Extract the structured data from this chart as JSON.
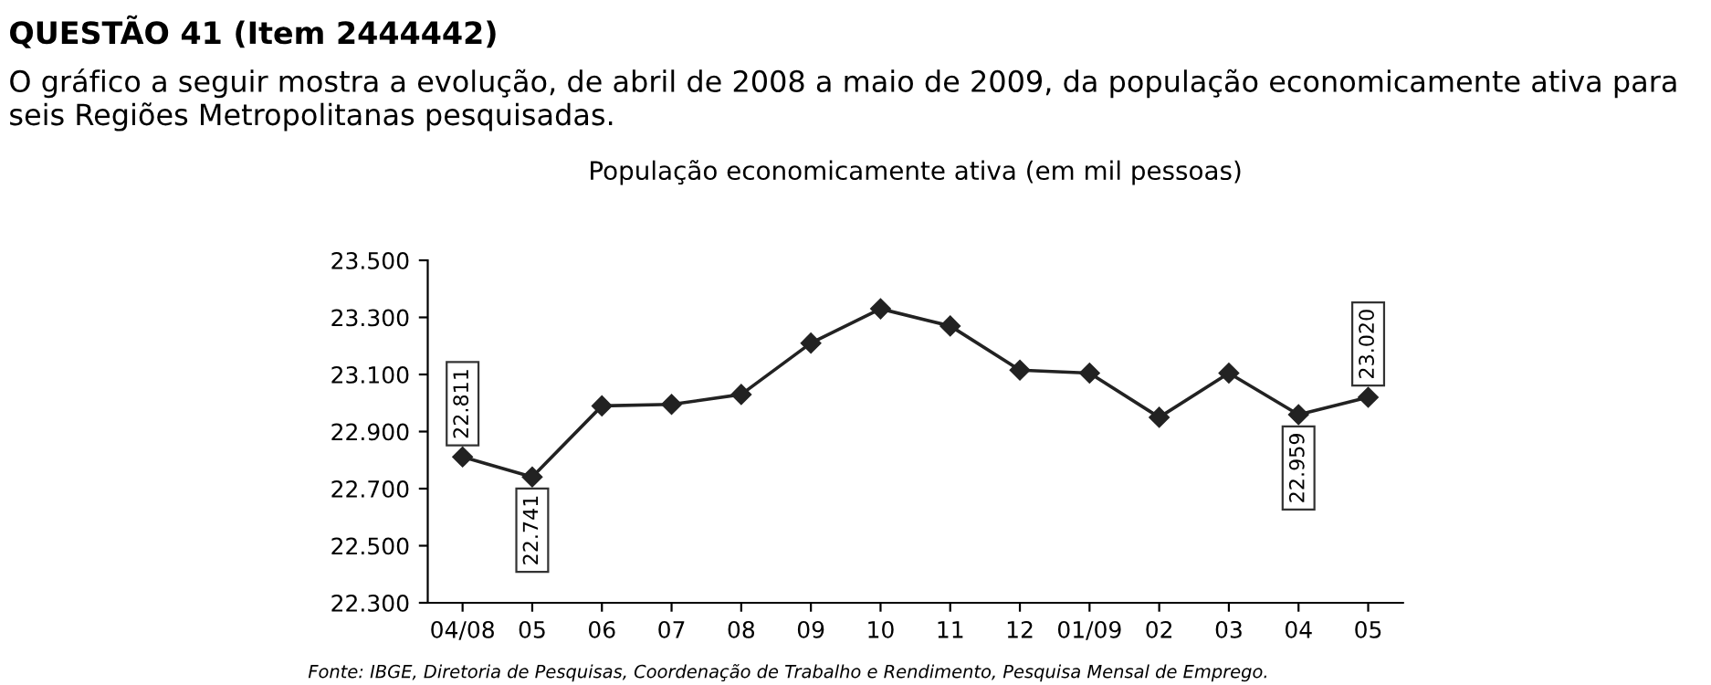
{
  "chart_data": {
    "type": "line",
    "title": "QUESTÃO 41 (Item 2444442)",
    "subtitle": "O gráfico a seguir mostra a evolução, de abril de 2008 a maio de 2009, da população economicamente ativa para seis Regiões Metropolitanas pesquisadas.",
    "annotations": [
      "População economicamente ativa (em mil pessoas)",
      "Fonte: IBGE, Diretoria de Pesquisas, Coordenação de Trabalho e Rendimento, Pesquisa Mensal de Emprego."
    ],
    "categories": [
      "04/08",
      "05",
      "06",
      "07",
      "08",
      "09",
      "10",
      "11",
      "12",
      "01/09",
      "02",
      "03",
      "04",
      "05"
    ],
    "series": [
      {
        "color": "#222222",
        "values": [
          22811,
          22741,
          22990,
          22995,
          23030,
          23210,
          23330,
          23270,
          23115,
          23105,
          22950,
          23105,
          22959,
          23020
        ],
        "value_labels": [
          "22.811",
          "22.741",
          null,
          null,
          null,
          null,
          null,
          null,
          null,
          null,
          null,
          null,
          "22.959",
          "23.020"
        ]
      }
    ],
    "ylim": [
      22300,
      23500
    ],
    "yticks": [
      {
        "value": 22300,
        "label": "22.300"
      },
      {
        "value": 22500,
        "label": "22.500"
      },
      {
        "value": 22700,
        "label": "22.700"
      },
      {
        "value": 22900,
        "label": "22.900"
      },
      {
        "value": 23100,
        "label": "23.100"
      },
      {
        "value": 23300,
        "label": "23.300"
      },
      {
        "value": 23500,
        "label": "23.500"
      }
    ],
    "marker": "diamond",
    "line_style": "solid",
    "grid": false
  }
}
